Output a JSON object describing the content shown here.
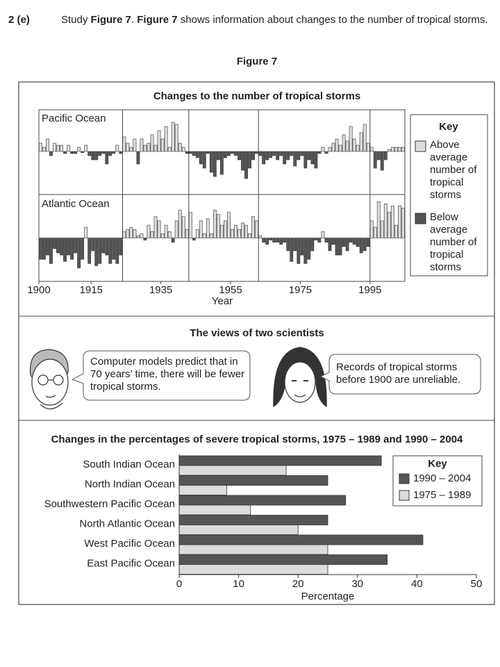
{
  "question": {
    "number": "2 (e)",
    "text_parts": [
      "Study ",
      "Figure 7",
      ".  ",
      "Figure 7",
      " shows information about changes to the number of tropical storms."
    ]
  },
  "figure_label": "Figure 7",
  "scientists": {
    "title": "The views of two scientists",
    "quotes": [
      "Computer models predict that in 70 years’ time, there will be fewer tropical storms.",
      "Records of tropical storms before 1900 are unreliable."
    ]
  },
  "chart_data": [
    {
      "type": "bar",
      "title": "Changes to the number of tropical storms",
      "x": [
        1900,
        1901,
        1902,
        1903,
        1904,
        1905,
        1906,
        1907,
        1908,
        1909,
        1910,
        1911,
        1912,
        1913,
        1914,
        1915,
        1916,
        1917,
        1918,
        1919,
        1920,
        1921,
        1922,
        1923,
        1924,
        1925,
        1926,
        1927,
        1928,
        1929,
        1930,
        1931,
        1932,
        1933,
        1934,
        1935,
        1936,
        1937,
        1938,
        1939,
        1940,
        1941,
        1942,
        1943,
        1944,
        1945,
        1946,
        1947,
        1948,
        1949,
        1950,
        1951,
        1952,
        1953,
        1954,
        1955,
        1956,
        1957,
        1958,
        1959,
        1960,
        1961,
        1962,
        1963,
        1964,
        1965,
        1966,
        1967,
        1968,
        1969,
        1970,
        1971,
        1972,
        1973,
        1974,
        1975,
        1976,
        1977,
        1978,
        1979,
        1980,
        1981,
        1982,
        1983,
        1984,
        1985,
        1986,
        1987,
        1988,
        1989,
        1990,
        1991,
        1992,
        1993,
        1994,
        1995,
        1996,
        1997,
        1998,
        1999,
        2000,
        2001,
        2002,
        2003,
        2004
      ],
      "panels": [
        {
          "name": "Pacific Ocean",
          "values": [
            2,
            1,
            3,
            -1,
            2,
            1.5,
            1.5,
            -0.5,
            1.5,
            -0.5,
            -0.5,
            1,
            -0.3,
            1.5,
            -1,
            -2,
            -2,
            -1,
            -0.5,
            -3,
            -1,
            -0.5,
            1.5,
            -0.5,
            3.5,
            2,
            1,
            3,
            -3,
            3,
            1.5,
            2,
            4,
            1.5,
            5,
            3,
            6,
            1,
            7,
            6.5,
            2,
            1,
            -0.5,
            -0.5,
            -1,
            -1.5,
            -3,
            -4,
            -0.5,
            -5,
            -6,
            -2,
            -5.5,
            -1.5,
            -1,
            -0.5,
            -1,
            -2,
            -4.5,
            -6.5,
            -4,
            -2,
            -0.5,
            -1,
            -3,
            -2,
            -1.5,
            -1,
            -2,
            -1,
            -3,
            -2,
            -1,
            -3.5,
            -2,
            -1,
            -4,
            -2,
            -3,
            -4,
            -0.5,
            1,
            -0.5,
            1,
            2,
            3,
            1.5,
            4,
            2.5,
            6,
            3,
            1.5,
            4.5,
            6.5,
            2,
            1,
            -4,
            -2,
            -4.5,
            -2,
            0.5,
            1,
            1,
            1,
            1
          ]
        },
        {
          "name": "Atlantic Ocean",
          "values": [
            -5,
            -5,
            -4,
            -6,
            -2.5,
            -3.5,
            -4,
            -5.5,
            -4,
            -5,
            -3.5,
            -7,
            -5,
            2.5,
            -6,
            -3,
            -6.5,
            -6,
            -3.5,
            -4,
            -6,
            -5,
            -6,
            -4,
            1.5,
            2,
            2.5,
            2,
            0.5,
            1,
            -0.5,
            3,
            1.5,
            5,
            4,
            1,
            3,
            1.5,
            -1,
            4,
            6.5,
            5,
            2,
            6,
            -0.5,
            2,
            4,
            1,
            4.5,
            1,
            6.5,
            5.5,
            3,
            4,
            6,
            2,
            3,
            2,
            3.5,
            3,
            1,
            5,
            4,
            0.5,
            -1,
            -1.5,
            -0.5,
            -1,
            -1,
            -1.5,
            -1,
            -3,
            -5.5,
            -3,
            -6,
            -4,
            -6,
            -5,
            -3,
            -0.5,
            -1,
            1.5,
            -1,
            -3,
            -1.5,
            -4,
            -4,
            -2,
            -3,
            -1,
            -1.5,
            -2,
            -3.5,
            -3,
            -2,
            4,
            2.5,
            8.5,
            4,
            8,
            6,
            7.5,
            3,
            7.5,
            7
          ]
        }
      ],
      "xlim": [
        1900,
        2005
      ],
      "xticks": [
        1900,
        1915,
        1935,
        1955,
        1975,
        1995
      ],
      "xlabel": "Year",
      "ylim": [
        -10,
        10
      ],
      "phase_boundaries": [
        1924,
        1943,
        1963,
        1995
      ],
      "legend": {
        "title": "Key",
        "entries": [
          {
            "name": "Above average number of tropical storms",
            "color": "#dcdcdc"
          },
          {
            "name": "Below average number of tropical storms",
            "color": "#555555"
          }
        ]
      }
    },
    {
      "type": "barh",
      "title": "Changes in the percentages of severe tropical storms, 1975 – 1989 and 1990 – 2004",
      "categories": [
        "South Indian Ocean",
        "North Indian Ocean",
        "Southwestern Pacific Ocean",
        "North Atlantic Ocean",
        "West Pacific Ocean",
        "East Pacific Ocean"
      ],
      "series": [
        {
          "name": "1990 – 2004",
          "color": "#555555",
          "values": [
            34,
            25,
            28,
            25,
            41,
            35
          ]
        },
        {
          "name": "1975 – 1989",
          "color": "#dcdcdc",
          "values": [
            18,
            8,
            12,
            20,
            25,
            25
          ]
        }
      ],
      "xlim": [
        0,
        50
      ],
      "xticks": [
        0,
        10,
        20,
        30,
        40,
        50
      ],
      "xlabel": "Percentage",
      "legend_title": "Key"
    }
  ]
}
